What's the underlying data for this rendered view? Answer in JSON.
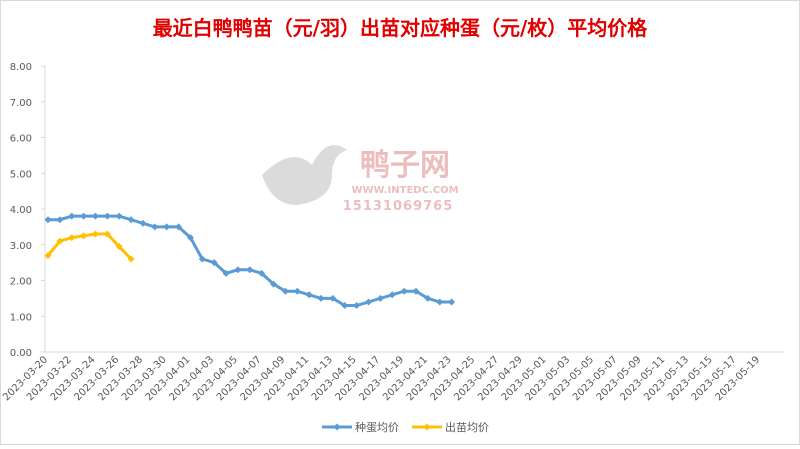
{
  "chart_data": {
    "type": "line",
    "title": "最近白鸭鸭苗（元/羽）出苗对应种蛋（元/枚）平均价格",
    "watermark": {
      "name": "鸭子网",
      "site": "WWW.INTEDC.COM",
      "phone": "15131069765"
    },
    "categories": [
      "2023-03-20",
      null,
      "2023-03-22",
      null,
      "2023-03-24",
      null,
      "2023-03-26",
      null,
      "2023-03-28",
      null,
      "2023-03-30",
      null,
      "2023-04-01",
      null,
      "2023-04-03",
      null,
      "2023-04-05",
      null,
      "2023-04-07",
      null,
      "2023-04-09",
      null,
      "2023-04-11",
      null,
      "2023-04-13",
      null,
      "2023-04-15",
      null,
      "2023-04-17",
      null,
      "2023-04-19",
      null,
      "2023-04-21",
      null,
      "2023-04-23",
      null,
      "2023-04-25",
      null,
      "2023-04-27",
      null,
      "2023-04-29",
      null,
      "2023-05-01",
      null,
      "2023-05-03",
      null,
      "2023-05-05",
      null,
      "2023-05-07",
      null,
      "2023-05-09",
      null,
      "2023-05-11",
      null,
      "2023-05-13",
      null,
      "2023-05-15",
      null,
      "2023-05-17",
      null,
      "2023-05-19",
      null
    ],
    "series": [
      {
        "name": "种蛋均价",
        "color": "#5b9bd5",
        "values": [
          3.7,
          3.7,
          3.8,
          3.8,
          3.8,
          3.8,
          3.8,
          3.7,
          3.6,
          3.5,
          3.5,
          3.5,
          3.2,
          2.6,
          2.5,
          2.2,
          2.3,
          2.3,
          2.2,
          1.9,
          1.7,
          1.7,
          1.6,
          1.5,
          1.5,
          1.3,
          1.3,
          1.4,
          1.5,
          1.6,
          1.7,
          1.7,
          1.5,
          1.4,
          1.4,
          null,
          null,
          null,
          null,
          null,
          null,
          null,
          null,
          null,
          null,
          null,
          null,
          null,
          null,
          null,
          null,
          null,
          null,
          null,
          null,
          null,
          null,
          null,
          null,
          null,
          null,
          null
        ]
      },
      {
        "name": "出苗均价",
        "color": "#ffc000",
        "values": [
          2.7,
          3.1,
          3.2,
          3.25,
          3.3,
          3.3,
          2.95,
          2.6,
          null,
          null,
          null,
          null,
          null,
          null,
          null,
          null,
          null,
          null,
          null,
          null,
          null,
          null,
          null,
          null,
          null,
          null,
          null,
          null,
          null,
          null,
          null,
          null,
          null,
          null,
          null,
          null,
          null,
          null,
          null,
          null,
          null,
          null,
          null,
          null,
          null,
          null,
          null,
          null,
          null,
          null,
          null,
          null,
          null,
          null,
          null,
          null,
          null,
          null,
          null,
          null,
          null,
          null
        ]
      }
    ],
    "ylim": [
      0,
      8
    ],
    "yticks": [
      {
        "value": 0,
        "label": "0.00"
      },
      {
        "value": 1,
        "label": "1.00"
      },
      {
        "value": 2,
        "label": "2.00"
      },
      {
        "value": 3,
        "label": "3.00"
      },
      {
        "value": 4,
        "label": "4.00"
      },
      {
        "value": 5,
        "label": "5.00"
      },
      {
        "value": 6,
        "label": "6.00"
      },
      {
        "value": 7,
        "label": "7.00"
      },
      {
        "value": 8,
        "label": "8.00"
      }
    ],
    "grid": false,
    "legend": "bottom"
  }
}
